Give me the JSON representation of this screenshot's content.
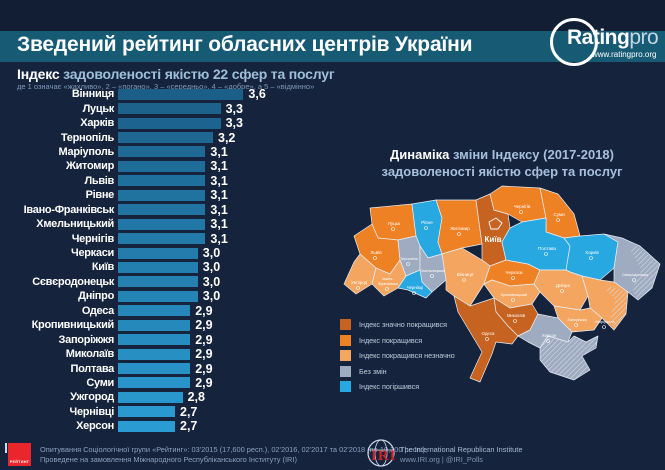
{
  "header": {
    "title": "Зведений рейтинг обласних центрів України"
  },
  "brand": {
    "name_bold": "Rating",
    "name_light": "pro",
    "url": "www.ratingpro.org"
  },
  "subtitle": {
    "lead": "Індекс",
    "rest": " задоволеності якістю 22 сфер та послуг",
    "note": "де 1 означає «жахливо», 2 – «погано», 3 – «середньо», 4 – «добре», а 5 – «відмінно»"
  },
  "chart_data": {
    "type": "bar",
    "title": "Індекс задоволеності якістю 22 сфер та послуг",
    "orientation": "horizontal",
    "xlim": [
      1.95,
      3.8
    ],
    "grid": false,
    "bar_color_top": "#1b5f88",
    "bar_color_bottom": "#2b9cd3",
    "categories": [
      "Вінниця",
      "Луцьк",
      "Харків",
      "Тернопіль",
      "Маріуполь",
      "Житомир",
      "Львів",
      "Рівне",
      "Івано-Франківськ",
      "Хмельницький",
      "Чернігів",
      "Черкаси",
      "Київ",
      "Сєвєродонецьк",
      "Дніпро",
      "Одеса",
      "Кропивницький",
      "Запоріжжя",
      "Миколаїв",
      "Полтава",
      "Суми",
      "Ужгород",
      "Чернівці",
      "Херсон"
    ],
    "values": [
      3.6,
      3.3,
      3.3,
      3.2,
      3.1,
      3.1,
      3.1,
      3.1,
      3.1,
      3.1,
      3.1,
      3.0,
      3.0,
      3.0,
      3.0,
      2.9,
      2.9,
      2.9,
      2.9,
      2.9,
      2.9,
      2.8,
      2.7,
      2.7
    ],
    "value_labels": [
      "3,6",
      "3,3",
      "3,3",
      "3,2",
      "3,1",
      "3,1",
      "3,1",
      "3,1",
      "3,1",
      "3,1",
      "3,1",
      "3,0",
      "3,0",
      "3,0",
      "3,0",
      "2,9",
      "2,9",
      "2,9",
      "2,9",
      "2,9",
      "2,9",
      "2,8",
      "2,7",
      "2,7"
    ]
  },
  "map": {
    "title_lead": "Динаміка",
    "title_rest": " зміни Індексу (2017-2018)",
    "title_line2": "задоволеності якістю сфер та послуг",
    "legend": [
      {
        "key": "significantly_improved",
        "label": "Індекс значно покращився",
        "color": "#c66321"
      },
      {
        "key": "improved",
        "label": "Індекс покращився",
        "color": "#ef8125"
      },
      {
        "key": "slightly_improved",
        "label": "Індекс покращився незначно",
        "color": "#f4a55f"
      },
      {
        "key": "no_change",
        "label": "Без змін",
        "color": "#9fabc0"
      },
      {
        "key": "worsened",
        "label": "Індекс погіршився",
        "color": "#27a8e1"
      }
    ],
    "regions": [
      {
        "id": "volyn",
        "label": "Луцьк",
        "status": "improved"
      },
      {
        "id": "rivne",
        "label": "Рівне",
        "status": "worsened"
      },
      {
        "id": "zhytomyr",
        "label": "Житомир",
        "status": "improved"
      },
      {
        "id": "kyiv_obl",
        "label": "Київ",
        "status": "significantly_improved"
      },
      {
        "id": "chernihiv",
        "label": "Чернігів",
        "status": "improved"
      },
      {
        "id": "sumy",
        "label": "Суми",
        "status": "improved"
      },
      {
        "id": "lviv",
        "label": "Львів",
        "status": "improved"
      },
      {
        "id": "ternopil",
        "label": "Тернопіль",
        "status": "no_change"
      },
      {
        "id": "khmelnytskyi",
        "label": "Хмельницький",
        "status": "no_change"
      },
      {
        "id": "zakarpattia",
        "label": "Ужгород",
        "status": "slightly_improved"
      },
      {
        "id": "ivano_frankivsk",
        "label": "Івано-Франківськ",
        "status": "slightly_improved"
      },
      {
        "id": "chernivtsi",
        "label": "Чернівці",
        "status": "worsened"
      },
      {
        "id": "vinnytsia",
        "label": "Вінниця",
        "status": "slightly_improved"
      },
      {
        "id": "cherkasy",
        "label": "Черкаси",
        "status": "improved"
      },
      {
        "id": "poltava",
        "label": "Полтава",
        "status": "worsened"
      },
      {
        "id": "kharkiv",
        "label": "Харків",
        "status": "worsened"
      },
      {
        "id": "luhansk",
        "label": "Сєвєродонецьк",
        "status": "no_change",
        "hatched": true
      },
      {
        "id": "kirovohrad",
        "label": "Кропивницький",
        "status": "slightly_improved"
      },
      {
        "id": "dnipro",
        "label": "Дніпро",
        "status": "slightly_improved"
      },
      {
        "id": "donetsk",
        "label": "Маріуполь",
        "status": "slightly_improved",
        "hatched": true
      },
      {
        "id": "zaporizhzhia",
        "label": "Запоріжжя",
        "status": "slightly_improved"
      },
      {
        "id": "mykolaiv",
        "label": "Миколаїв",
        "status": "significantly_improved"
      },
      {
        "id": "odesa",
        "label": "Одеса",
        "status": "significantly_improved"
      },
      {
        "id": "kherson",
        "label": "Херсон",
        "status": "no_change"
      },
      {
        "id": "crimea",
        "label": "",
        "status": "no_change",
        "hatched": true
      }
    ]
  },
  "footer": {
    "line1": "Опитування Соціологічної групи «Рейтинг»: 03'2015 (17,600 респ.), 02'2016, 02'2017 та 02'2018 (по 19,200 респ.),",
    "line2": "Проведене на замовлення Міжнародного Республіканського Інституту (IRI)",
    "rating_logo": "РЕЙТИНГ",
    "iri": {
      "abbr": "IRI",
      "line1": "The International Republican Institute",
      "line2": "www.IRI.org | @IRI_Polls"
    }
  }
}
